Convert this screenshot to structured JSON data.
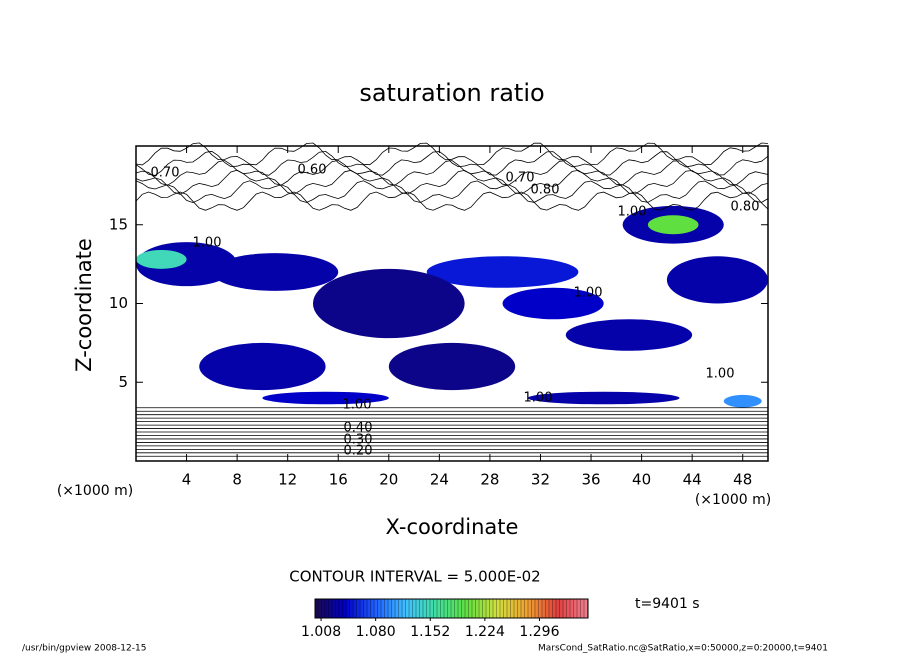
{
  "chart_data": {
    "type": "contour",
    "title": "saturation ratio",
    "x_label": "X-coordinate",
    "y_label": "Z-coordinate",
    "x_unit": "(×1000 m)",
    "y_unit": "(×1000 m)",
    "xlim": [
      0,
      50
    ],
    "xticks": [
      4,
      8,
      12,
      16,
      20,
      24,
      28,
      32,
      36,
      40,
      44,
      48
    ],
    "ylim": [
      0,
      20
    ],
    "yticks": [
      5,
      10,
      15
    ],
    "contour_labels": [
      "0.70",
      "0.60",
      "0.70",
      "0.80",
      "1.00",
      "0.80",
      "1.00",
      "1.00",
      "1.00",
      "1.00",
      "1.00",
      "0.40",
      "0.30",
      "0.20"
    ],
    "shaded_regions": [
      1.03,
      1.15,
      1.03,
      1.05,
      1.03,
      1.2,
      1.03,
      1.02,
      1.04,
      1.03,
      1.02,
      1.03,
      1.04,
      1.03,
      1.1
    ],
    "contour_interval_text": "CONTOUR INTERVAL = 5.000E-02",
    "time_text": "t=9401 s",
    "clim": [
      1.0,
      1.36
    ],
    "colormap": [
      "#1a0a4a",
      "#0000c8",
      "#2060ff",
      "#40c0ff",
      "#40e0a0",
      "#60e040",
      "#d0e040",
      "#f0a030",
      "#e04040",
      "#f08090"
    ],
    "cticks": [
      {
        "value": 1.008,
        "label": "1.008"
      },
      {
        "value": 1.08,
        "label": "1.080"
      },
      {
        "value": 1.152,
        "label": "1.152"
      },
      {
        "value": 1.224,
        "label": "1.224"
      },
      {
        "value": 1.296,
        "label": "1.296"
      }
    ],
    "footer_left": "/usr/bin/gpview  2008-12-15",
    "footer_right": "MarsCond_SatRatio.nc@SatRatio,x=0:50000,z=0:20000,t=9401"
  }
}
